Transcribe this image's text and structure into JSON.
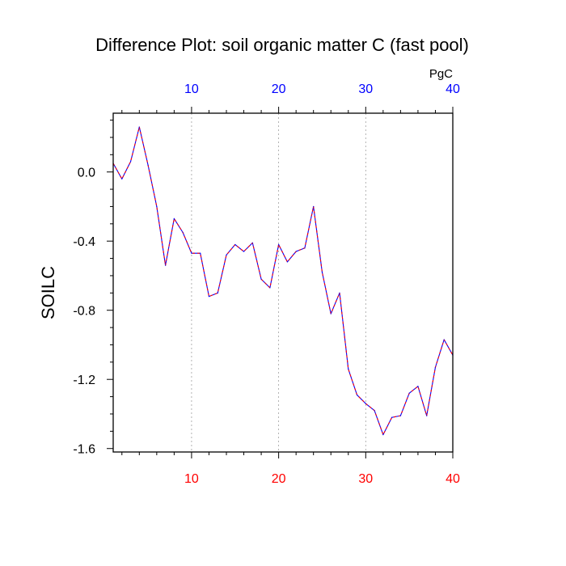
{
  "chart_data": {
    "type": "line",
    "title": "Difference Plot: soil organic matter C (fast pool)",
    "ylabel": "SOILC",
    "top_axis_unit": "PgC",
    "xlim": [
      1,
      40
    ],
    "ylim": [
      -1.62,
      0.34
    ],
    "x_ticks": [
      10,
      20,
      30,
      40
    ],
    "y_ticks": [
      0.0,
      -0.4,
      -0.8,
      -1.2,
      -1.6
    ],
    "y_tick_labels": [
      "0.0",
      "-0.4",
      "-0.8",
      "-1.2",
      "-1.6"
    ],
    "grid": "vertical dotted at major x ticks",
    "colors": {
      "bottom_ticks": "#ff0000",
      "top_ticks": "#0000ff",
      "line_a": "#0000ff",
      "line_b": "#ff0000"
    },
    "x": [
      1,
      2,
      3,
      4,
      5,
      6,
      7,
      8,
      9,
      10,
      11,
      12,
      13,
      14,
      15,
      16,
      17,
      18,
      19,
      20,
      21,
      22,
      23,
      24,
      25,
      26,
      27,
      28,
      29,
      30,
      31,
      32,
      33,
      34,
      35,
      36,
      37,
      38,
      39,
      40
    ],
    "series": [
      {
        "values": [
          0.05,
          -0.04,
          0.06,
          0.26,
          0.04,
          -0.2,
          -0.54,
          -0.27,
          -0.35,
          -0.47,
          -0.47,
          -0.72,
          -0.7,
          -0.48,
          -0.42,
          -0.46,
          -0.41,
          -0.62,
          -0.67,
          -0.42,
          -0.52,
          -0.46,
          -0.44,
          -0.2,
          -0.58,
          -0.82,
          -0.7,
          -1.14,
          -1.29,
          -1.34,
          -1.38,
          -1.52,
          -1.42,
          -1.41,
          -1.28,
          -1.24,
          -1.41,
          -1.13,
          -0.97,
          -1.06
        ]
      }
    ]
  }
}
